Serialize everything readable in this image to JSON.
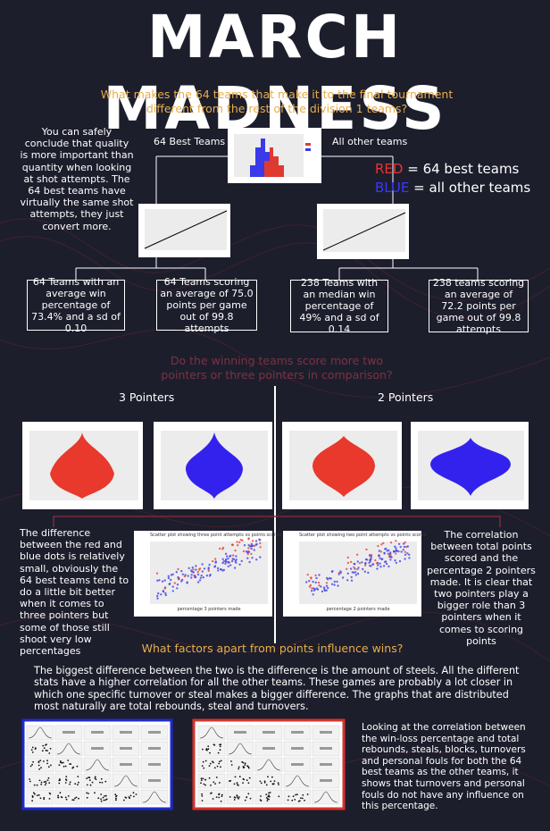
{
  "title": "MARCH MADNESS",
  "question1": "What makes the 64 teams that make it to the final tournament different from the rest of the division 1 teams?",
  "intro": "You can safely conclude that quality is more important than quantity when looking at shot attempts. The 64 best teams have virtually the same shot attempts, they just convert more.",
  "groups": {
    "best": "64 Best Teams",
    "other": "All other teams"
  },
  "legend": {
    "red": "RED",
    "red_text": "= 64 best teams",
    "blue": "BLUE",
    "blue_text": "= all other teams"
  },
  "boxes": [
    "64 Teams with an average win percentage of 73.4% and a sd of 0.10",
    "64 Teams scoring an average of 75.0 points per game out of 99.8 attempts",
    "238 Teams with an median win percentage of 49% and a sd of 0.14",
    "238 teams scoring an average of 72.2 points per game out of 99.8 attempts"
  ],
  "question2": "Do the winning teams score more two pointers or three pointers in comparison?",
  "three": "3 Pointers",
  "two": "2 Pointers",
  "left_text": "The difference between the red and blue dots is relatively small, obviously the 64 best teams tend to do a little bit better when it comes to three pointers but some of those still shoot very low percentages",
  "right_text": "The correlation between total points scored and the percentage 2 pointers made. It is clear that two pointers play a bigger role than 3 pointers when it comes to scoring points",
  "scatter3": {
    "title": "Scatter plot showing three point attempts vs points scored",
    "xlabel": "percentage 3 pointers made"
  },
  "scatter2": {
    "title": "Scatter plot showing two point attempts vs points scored",
    "xlabel": "percentage 2 pointers made"
  },
  "question3": "What factors apart from points influence wins?",
  "paragraph": "The biggest difference between the two is the difference is the amount of steels. All the different stats have a higher correlation for all the other teams. These games are probably a lot closer in which one specific turnover or steal makes a bigger difference. The graphs that are distributed most naturally are total rebounds, steal and turnovers.",
  "closing": "Looking at the correlation between the win-loss percentage and total rebounds, steals, blocks, turnovers and personal fouls for both the 64 best teams as the other teams, it shows that turnovers and personal fouls do not have any influence on this percentage."
}
